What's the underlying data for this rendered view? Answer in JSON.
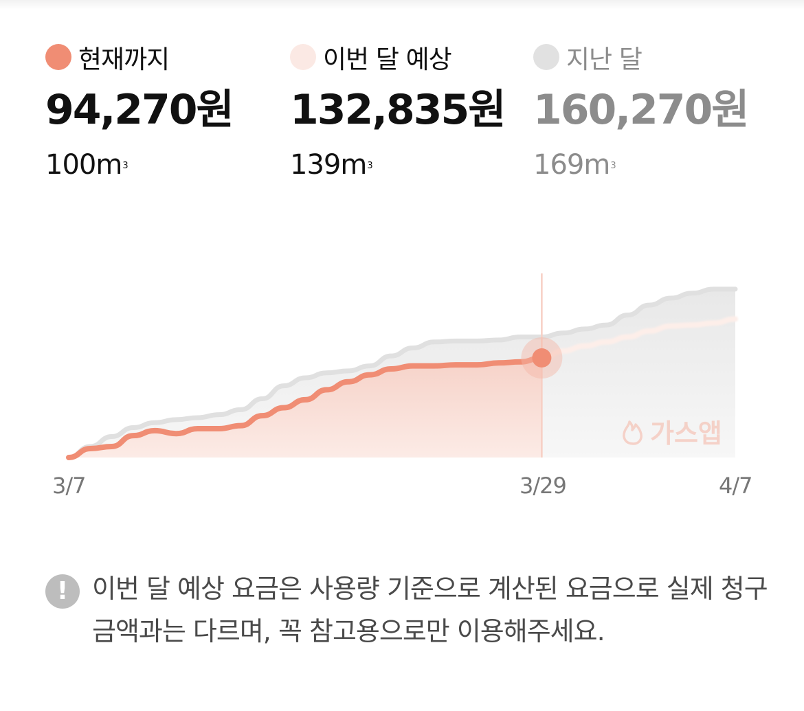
{
  "summary": [
    {
      "label": "현재까지",
      "amount": "94,270원",
      "volume": "100m",
      "unit_sup": "3",
      "dot_color": "#f08d74",
      "text_color": "#111111"
    },
    {
      "label": "이번 달 예상",
      "amount": "132,835원",
      "volume": "139m",
      "unit_sup": "3",
      "dot_color": "#fbe9e4",
      "text_color": "#111111"
    },
    {
      "label": "지난 달",
      "amount": "160,270원",
      "volume": "169m",
      "unit_sup": "3",
      "dot_color": "#e1e1e1",
      "text_color": "#8c8c8c"
    }
  ],
  "chart_data": {
    "type": "area",
    "x_labels": [
      "3/7",
      "3/29",
      "4/7"
    ],
    "ylim": [
      0,
      180
    ],
    "current_marker": "3/29",
    "watermark": "가스앱",
    "colors": {
      "current": "#f08d74",
      "forecast": "#fbe9e4",
      "last_month": "#e1e1e1"
    },
    "series": [
      {
        "key": "current",
        "x": [
          "3/7",
          "3/8",
          "3/9",
          "3/10",
          "3/11",
          "3/12",
          "3/13",
          "3/14",
          "3/15",
          "3/16",
          "3/17",
          "3/18",
          "3/19",
          "3/20",
          "3/21",
          "3/22",
          "3/23",
          "3/24",
          "3/25",
          "3/26",
          "3/27",
          "3/28",
          "3/29"
        ],
        "values": [
          0,
          9,
          11,
          22,
          27,
          24,
          29,
          29,
          32,
          42,
          50,
          58,
          68,
          76,
          83,
          89,
          92,
          92,
          93,
          93,
          95,
          96,
          100
        ]
      },
      {
        "key": "forecast",
        "x": [
          "3/29",
          "3/30",
          "3/31",
          "4/1",
          "4/2",
          "4/3",
          "4/4",
          "4/5",
          "4/6",
          "4/7"
        ],
        "values": [
          100,
          107,
          112,
          116,
          121,
          127,
          132,
          133,
          135,
          139
        ]
      },
      {
        "key": "last_month",
        "x": [
          "3/7",
          "3/8",
          "3/9",
          "3/10",
          "3/11",
          "3/12",
          "3/13",
          "3/14",
          "3/15",
          "3/16",
          "3/17",
          "3/18",
          "3/19",
          "3/20",
          "3/21",
          "3/22",
          "3/23",
          "3/24",
          "3/25",
          "3/26",
          "3/27",
          "3/28",
          "3/29",
          "3/30",
          "3/31",
          "4/1",
          "4/2",
          "4/3",
          "4/4",
          "4/5",
          "4/6",
          "4/7"
        ],
        "values": [
          0,
          11,
          21,
          30,
          35,
          38,
          40,
          43,
          48,
          59,
          72,
          80,
          85,
          87,
          92,
          102,
          110,
          116,
          117,
          117,
          118,
          121,
          121,
          125,
          129,
          133,
          143,
          153,
          160,
          165,
          169,
          169
        ]
      }
    ]
  },
  "notice": {
    "icon": "exclamation-icon",
    "text": "이번 달 예상 요금은 사용량 기준으로 계산된 요금으로 실제 청구 금액과는 다르며, 꼭 참고용으로만 이용해주세요."
  }
}
